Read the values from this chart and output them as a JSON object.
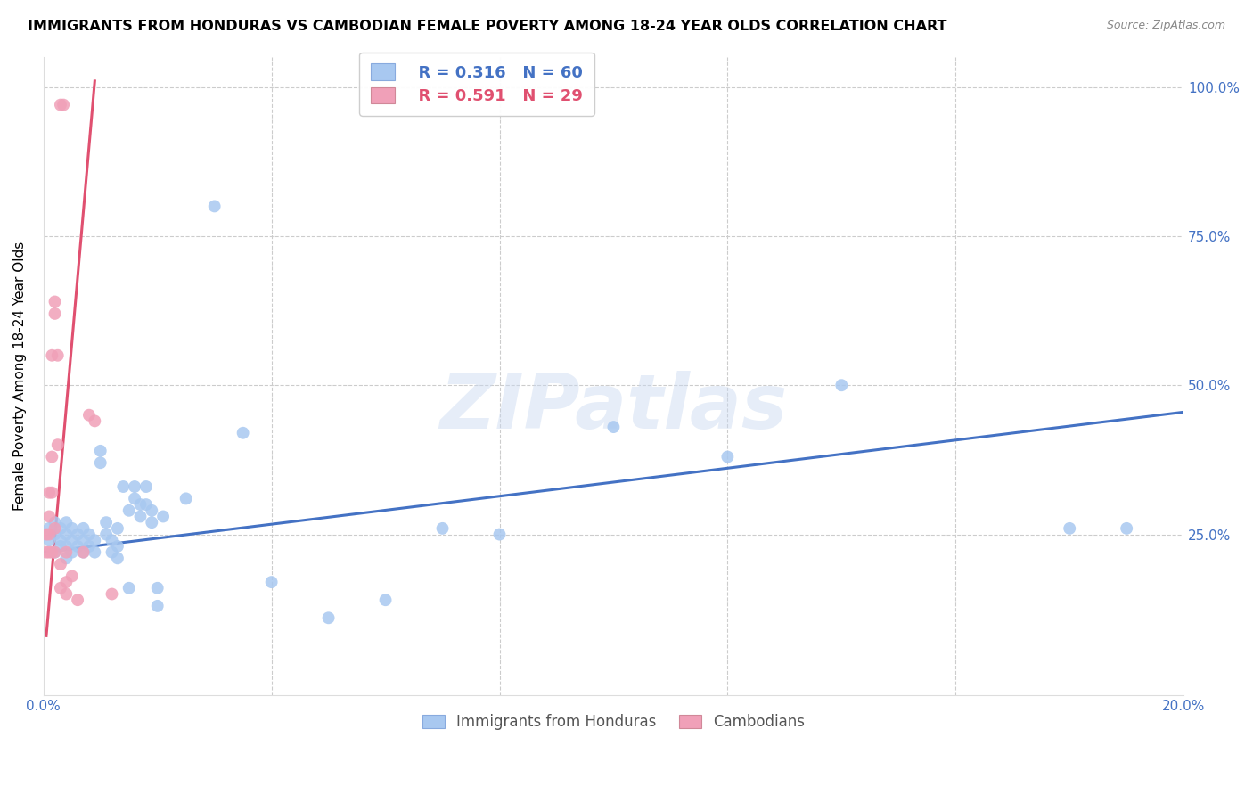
{
  "title": "IMMIGRANTS FROM HONDURAS VS CAMBODIAN FEMALE POVERTY AMONG 18-24 YEAR OLDS CORRELATION CHART",
  "source": "Source: ZipAtlas.com",
  "ylabel": "Female Poverty Among 18-24 Year Olds",
  "legend1_r": "R = 0.316",
  "legend1_n": "N = 60",
  "legend2_r": "R = 0.591",
  "legend2_n": "N = 29",
  "blue_color": "#A8C8F0",
  "pink_color": "#F0A0B8",
  "blue_line_color": "#4472C4",
  "pink_line_color": "#E05070",
  "watermark": "ZIPatlas",
  "blue_points": [
    [
      0.001,
      0.24
    ],
    [
      0.001,
      0.26
    ],
    [
      0.002,
      0.22
    ],
    [
      0.002,
      0.25
    ],
    [
      0.002,
      0.27
    ],
    [
      0.003,
      0.23
    ],
    [
      0.003,
      0.24
    ],
    [
      0.003,
      0.26
    ],
    [
      0.004,
      0.21
    ],
    [
      0.004,
      0.23
    ],
    [
      0.004,
      0.25
    ],
    [
      0.004,
      0.27
    ],
    [
      0.005,
      0.22
    ],
    [
      0.005,
      0.24
    ],
    [
      0.005,
      0.26
    ],
    [
      0.006,
      0.23
    ],
    [
      0.006,
      0.25
    ],
    [
      0.007,
      0.24
    ],
    [
      0.007,
      0.22
    ],
    [
      0.007,
      0.26
    ],
    [
      0.008,
      0.23
    ],
    [
      0.008,
      0.25
    ],
    [
      0.009,
      0.24
    ],
    [
      0.009,
      0.22
    ],
    [
      0.01,
      0.37
    ],
    [
      0.01,
      0.39
    ],
    [
      0.011,
      0.25
    ],
    [
      0.011,
      0.27
    ],
    [
      0.012,
      0.24
    ],
    [
      0.012,
      0.22
    ],
    [
      0.013,
      0.26
    ],
    [
      0.013,
      0.23
    ],
    [
      0.013,
      0.21
    ],
    [
      0.014,
      0.33
    ],
    [
      0.015,
      0.16
    ],
    [
      0.015,
      0.29
    ],
    [
      0.016,
      0.31
    ],
    [
      0.016,
      0.33
    ],
    [
      0.017,
      0.28
    ],
    [
      0.017,
      0.3
    ],
    [
      0.018,
      0.33
    ],
    [
      0.018,
      0.3
    ],
    [
      0.019,
      0.27
    ],
    [
      0.019,
      0.29
    ],
    [
      0.02,
      0.16
    ],
    [
      0.02,
      0.13
    ],
    [
      0.021,
      0.28
    ],
    [
      0.025,
      0.31
    ],
    [
      0.03,
      0.8
    ],
    [
      0.035,
      0.42
    ],
    [
      0.04,
      0.17
    ],
    [
      0.05,
      0.11
    ],
    [
      0.06,
      0.14
    ],
    [
      0.07,
      0.26
    ],
    [
      0.08,
      0.25
    ],
    [
      0.1,
      0.43
    ],
    [
      0.12,
      0.38
    ],
    [
      0.14,
      0.5
    ],
    [
      0.18,
      0.26
    ],
    [
      0.19,
      0.26
    ]
  ],
  "pink_points": [
    [
      0.0005,
      0.22
    ],
    [
      0.0005,
      0.25
    ],
    [
      0.001,
      0.22
    ],
    [
      0.001,
      0.25
    ],
    [
      0.001,
      0.28
    ],
    [
      0.001,
      0.32
    ],
    [
      0.0015,
      0.22
    ],
    [
      0.0015,
      0.32
    ],
    [
      0.0015,
      0.38
    ],
    [
      0.0015,
      0.55
    ],
    [
      0.002,
      0.22
    ],
    [
      0.002,
      0.26
    ],
    [
      0.002,
      0.62
    ],
    [
      0.002,
      0.64
    ],
    [
      0.0025,
      0.4
    ],
    [
      0.0025,
      0.55
    ],
    [
      0.003,
      0.16
    ],
    [
      0.003,
      0.2
    ],
    [
      0.003,
      0.97
    ],
    [
      0.0035,
      0.97
    ],
    [
      0.004,
      0.22
    ],
    [
      0.004,
      0.15
    ],
    [
      0.004,
      0.17
    ],
    [
      0.005,
      0.18
    ],
    [
      0.006,
      0.14
    ],
    [
      0.007,
      0.22
    ],
    [
      0.008,
      0.45
    ],
    [
      0.009,
      0.44
    ],
    [
      0.012,
      0.15
    ]
  ],
  "xlim": [
    0,
    0.2
  ],
  "ylim": [
    -0.02,
    1.05
  ],
  "blue_trend_x": [
    0.0,
    0.2
  ],
  "blue_trend_y": [
    0.22,
    0.455
  ],
  "pink_trend_x": [
    0.0005,
    0.009
  ],
  "pink_trend_y": [
    0.08,
    1.01
  ]
}
